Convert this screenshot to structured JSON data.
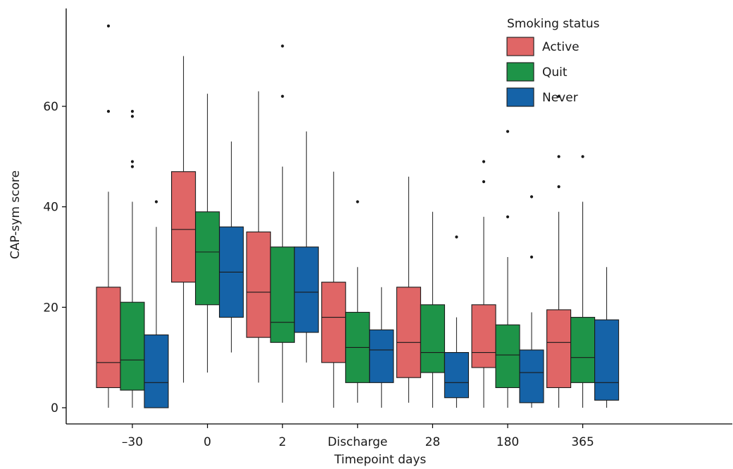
{
  "chart_data": {
    "type": "boxplot",
    "xlabel": "Timepoint days",
    "ylabel": "CAP-sym score",
    "ylim": [
      -3,
      79
    ],
    "yticks": [
      0,
      20,
      40,
      60
    ],
    "categories": [
      "–30",
      "0",
      "2",
      "Discharge",
      "28",
      "180",
      "365"
    ],
    "legend": {
      "title": "Smoking status",
      "position": "top-right"
    },
    "series": [
      {
        "name": "Active",
        "color": "#e06666",
        "boxes": [
          {
            "low": 0,
            "q1": 4,
            "median": 9,
            "q3": 24,
            "high": 43,
            "outliers": [
              59,
              76
            ]
          },
          {
            "low": 5,
            "q1": 25,
            "median": 35.5,
            "q3": 47,
            "high": 70,
            "outliers": []
          },
          {
            "low": 5,
            "q1": 14,
            "median": 23,
            "q3": 35,
            "high": 63,
            "outliers": []
          },
          {
            "low": 0,
            "q1": 9,
            "median": 18,
            "q3": 25,
            "high": 47,
            "outliers": []
          },
          {
            "low": 1,
            "q1": 6,
            "median": 13,
            "q3": 24,
            "high": 46,
            "outliers": []
          },
          {
            "low": 0,
            "q1": 8,
            "median": 11,
            "q3": 20.5,
            "high": 38,
            "outliers": [
              45,
              49
            ]
          },
          {
            "low": 0,
            "q1": 4,
            "median": 13,
            "q3": 19.5,
            "high": 39,
            "outliers": [
              44,
              50,
              62
            ]
          }
        ]
      },
      {
        "name": "Quit",
        "color": "#1e9448",
        "boxes": [
          {
            "low": 0,
            "q1": 3.5,
            "median": 9.5,
            "q3": 21,
            "high": 41,
            "outliers": [
              48,
              49,
              58,
              59
            ]
          },
          {
            "low": 7,
            "q1": 20.5,
            "median": 31,
            "q3": 39,
            "high": 62.5,
            "outliers": []
          },
          {
            "low": 1,
            "q1": 13,
            "median": 17,
            "q3": 32,
            "high": 48,
            "outliers": [
              62,
              72
            ]
          },
          {
            "low": 1,
            "q1": 5,
            "median": 12,
            "q3": 19,
            "high": 28,
            "outliers": [
              41
            ]
          },
          {
            "low": 0,
            "q1": 7,
            "median": 11,
            "q3": 20.5,
            "high": 39,
            "outliers": []
          },
          {
            "low": 0,
            "q1": 4,
            "median": 10.5,
            "q3": 16.5,
            "high": 30,
            "outliers": [
              38,
              55
            ]
          },
          {
            "low": 0,
            "q1": 5,
            "median": 10,
            "q3": 18,
            "high": 41,
            "outliers": [
              50
            ]
          }
        ]
      },
      {
        "name": "Never",
        "color": "#1563a8",
        "boxes": [
          {
            "low": 0,
            "q1": 0,
            "median": 5,
            "q3": 14.5,
            "high": 36,
            "outliers": [
              41
            ]
          },
          {
            "low": 11,
            "q1": 18,
            "median": 27,
            "q3": 36,
            "high": 53,
            "outliers": []
          },
          {
            "low": 9,
            "q1": 15,
            "median": 23,
            "q3": 32,
            "high": 55,
            "outliers": []
          },
          {
            "low": 0,
            "q1": 5,
            "median": 11.5,
            "q3": 15.5,
            "high": 24,
            "outliers": []
          },
          {
            "low": 0,
            "q1": 2,
            "median": 5,
            "q3": 11,
            "high": 18,
            "outliers": [
              34
            ]
          },
          {
            "low": 0,
            "q1": 1,
            "median": 7,
            "q3": 11.5,
            "high": 19,
            "outliers": [
              30,
              42
            ]
          },
          {
            "low": 0,
            "q1": 1.5,
            "median": 5,
            "q3": 17.5,
            "high": 28,
            "outliers": []
          }
        ]
      }
    ]
  }
}
